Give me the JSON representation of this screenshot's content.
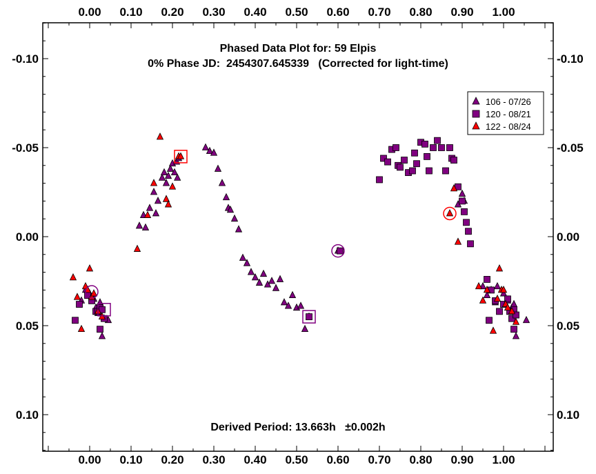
{
  "chart_data": {
    "type": "scatter",
    "title": "Phased Data Plot for: 59 Elpis",
    "subtitle": "0% Phase JD:  2454307.645339   (Corrected for light-time)",
    "annotation": "Derived Period: 13.663h   ±0.002h",
    "xlim": [
      -0.11,
      1.12
    ],
    "ylim": [
      -0.12,
      0.12
    ],
    "y_inverted": true,
    "x_ticks": [
      0.0,
      0.1,
      0.2,
      0.3,
      0.4,
      0.5,
      0.6,
      0.7,
      0.8,
      0.9,
      1.0
    ],
    "x_tick_labels": [
      "0.00",
      "0.10",
      "0.20",
      "0.30",
      "0.40",
      "0.50",
      "0.60",
      "0.70",
      "0.80",
      "0.90",
      "1.00"
    ],
    "y_ticks": [
      -0.1,
      -0.05,
      0.0,
      0.05,
      0.1
    ],
    "y_tick_labels": [
      "-0.10",
      "-0.05",
      "0.00",
      "0.05",
      "0.10"
    ],
    "grid": false,
    "legend_position": "top-right",
    "series": [
      {
        "name": "106 - 07/26",
        "marker": "triangle",
        "color": "#800080",
        "points": [
          [
            0.12,
            -0.006
          ],
          [
            0.13,
            -0.012
          ],
          [
            0.135,
            -0.005
          ],
          [
            0.145,
            -0.016
          ],
          [
            0.155,
            -0.025
          ],
          [
            0.16,
            -0.013
          ],
          [
            0.165,
            -0.02
          ],
          [
            0.175,
            -0.033
          ],
          [
            0.18,
            -0.036
          ],
          [
            0.185,
            -0.03
          ],
          [
            0.19,
            -0.034
          ],
          [
            0.195,
            -0.038
          ],
          [
            0.2,
            -0.041
          ],
          [
            0.205,
            -0.036
          ],
          [
            0.21,
            -0.042
          ],
          [
            0.212,
            -0.033
          ],
          [
            0.215,
            -0.044
          ],
          [
            0.28,
            -0.05
          ],
          [
            0.29,
            -0.048
          ],
          [
            0.3,
            -0.047
          ],
          [
            0.31,
            -0.038
          ],
          [
            0.32,
            -0.03
          ],
          [
            0.33,
            -0.022
          ],
          [
            0.335,
            -0.016
          ],
          [
            0.34,
            -0.015
          ],
          [
            0.35,
            -0.01
          ],
          [
            0.36,
            -0.004
          ],
          [
            0.37,
            0.012
          ],
          [
            0.38,
            0.015
          ],
          [
            0.39,
            0.02
          ],
          [
            0.4,
            0.023
          ],
          [
            0.41,
            0.026
          ],
          [
            0.42,
            0.021
          ],
          [
            0.43,
            0.027
          ],
          [
            0.44,
            0.025
          ],
          [
            0.45,
            0.029
          ],
          [
            0.46,
            0.024
          ],
          [
            0.47,
            0.037
          ],
          [
            0.48,
            0.039
          ],
          [
            0.49,
            0.033
          ],
          [
            0.5,
            0.04
          ],
          [
            0.51,
            0.039
          ],
          [
            0.52,
            0.052
          ],
          [
            0.53,
            0.045
          ],
          [
            0.89,
            -0.018
          ],
          [
            0.9,
            -0.024
          ],
          [
            0.905,
            -0.02
          ],
          [
            -0.02,
            0.036
          ],
          [
            -0.01,
            0.03
          ],
          [
            0.0,
            0.032
          ],
          [
            0.01,
            0.035
          ],
          [
            0.015,
            0.04
          ],
          [
            0.02,
            0.043
          ],
          [
            0.025,
            0.037
          ],
          [
            0.03,
            0.04
          ],
          [
            0.035,
            0.046
          ],
          [
            0.03,
            0.056
          ],
          [
            0.045,
            0.047
          ],
          [
            0.95,
            0.028
          ],
          [
            0.96,
            0.033
          ],
          [
            0.97,
            0.03
          ],
          [
            0.98,
            0.037
          ],
          [
            0.985,
            0.028
          ],
          [
            1.0,
            0.032
          ],
          [
            1.01,
            0.036
          ],
          [
            1.02,
            0.04
          ],
          [
            1.025,
            0.038
          ],
          [
            1.03,
            0.056
          ],
          [
            1.055,
            0.047
          ],
          [
            0.6,
            0.008
          ]
        ]
      },
      {
        "name": "120 - 08/21",
        "marker": "square",
        "color": "#800080",
        "points": [
          [
            0.7,
            -0.032
          ],
          [
            0.71,
            -0.044
          ],
          [
            0.72,
            -0.042
          ],
          [
            0.73,
            -0.049
          ],
          [
            0.74,
            -0.05
          ],
          [
            0.745,
            -0.04
          ],
          [
            0.75,
            -0.039
          ],
          [
            0.76,
            -0.043
          ],
          [
            0.77,
            -0.036
          ],
          [
            0.78,
            -0.037
          ],
          [
            0.785,
            -0.047
          ],
          [
            0.79,
            -0.041
          ],
          [
            0.8,
            -0.053
          ],
          [
            0.81,
            -0.052
          ],
          [
            0.815,
            -0.045
          ],
          [
            0.82,
            -0.037
          ],
          [
            0.83,
            -0.05
          ],
          [
            0.84,
            -0.054
          ],
          [
            0.85,
            -0.05
          ],
          [
            0.86,
            -0.037
          ],
          [
            0.87,
            -0.05
          ],
          [
            0.875,
            -0.044
          ],
          [
            0.88,
            -0.043
          ],
          [
            0.89,
            -0.028
          ],
          [
            0.9,
            -0.02
          ],
          [
            0.905,
            -0.014
          ],
          [
            0.91,
            -0.008
          ],
          [
            0.915,
            -0.003
          ],
          [
            0.92,
            0.004
          ],
          [
            -0.035,
            0.047
          ],
          [
            -0.025,
            0.038
          ],
          [
            -0.005,
            0.033
          ],
          [
            0.005,
            0.036
          ],
          [
            0.015,
            0.042
          ],
          [
            0.02,
            0.042
          ],
          [
            0.025,
            0.04
          ],
          [
            0.03,
            0.041
          ],
          [
            0.035,
            0.046
          ],
          [
            0.025,
            0.052
          ],
          [
            0.96,
            0.024
          ],
          [
            0.97,
            0.03
          ],
          [
            0.98,
            0.036
          ],
          [
            0.99,
            0.042
          ],
          [
            1.0,
            0.038
          ],
          [
            1.01,
            0.035
          ],
          [
            1.015,
            0.042
          ],
          [
            1.02,
            0.046
          ],
          [
            1.025,
            0.041
          ],
          [
            1.03,
            0.044
          ],
          [
            1.025,
            0.052
          ],
          [
            0.965,
            0.047
          ],
          [
            0.53,
            0.045
          ],
          [
            0.605,
            0.008
          ]
        ]
      },
      {
        "name": "122 - 08/24",
        "marker": "triangle",
        "color": "#ff0000",
        "points": [
          [
            -0.04,
            0.023
          ],
          [
            -0.03,
            0.034
          ],
          [
            -0.02,
            0.052
          ],
          [
            -0.01,
            0.028
          ],
          [
            -0.005,
            0.03
          ],
          [
            0.0,
            0.018
          ],
          [
            0.005,
            0.034
          ],
          [
            0.01,
            0.032
          ],
          [
            0.02,
            0.042
          ],
          [
            0.03,
            0.045
          ],
          [
            0.115,
            0.007
          ],
          [
            0.14,
            -0.012
          ],
          [
            0.155,
            -0.03
          ],
          [
            0.17,
            -0.056
          ],
          [
            0.185,
            -0.021
          ],
          [
            0.19,
            -0.018
          ],
          [
            0.2,
            -0.028
          ],
          [
            0.215,
            -0.045
          ],
          [
            0.22,
            -0.045
          ],
          [
            0.87,
            -0.013
          ],
          [
            0.88,
            -0.027
          ],
          [
            0.89,
            0.003
          ],
          [
            0.94,
            0.028
          ],
          [
            0.95,
            0.036
          ],
          [
            0.96,
            0.03
          ],
          [
            0.975,
            0.053
          ],
          [
            0.985,
            0.035
          ],
          [
            0.99,
            0.018
          ],
          [
            0.995,
            0.03
          ],
          [
            1.0,
            0.03
          ],
          [
            1.005,
            0.038
          ],
          [
            1.01,
            0.04
          ],
          [
            1.02,
            0.042
          ],
          [
            1.03,
            0.048
          ]
        ]
      }
    ],
    "highlight_markers": [
      {
        "x": 0.005,
        "y": 0.031,
        "shape": "circle",
        "color": "#800080"
      },
      {
        "x": 0.035,
        "y": 0.041,
        "shape": "square",
        "color": "#800080"
      },
      {
        "x": 0.22,
        "y": -0.045,
        "shape": "square",
        "color": "#ff0000"
      },
      {
        "x": 0.53,
        "y": 0.045,
        "shape": "square",
        "color": "#800080"
      },
      {
        "x": 0.6,
        "y": 0.008,
        "shape": "circle",
        "color": "#800080"
      },
      {
        "x": 0.87,
        "y": -0.013,
        "shape": "circle",
        "color": "#ff0000"
      }
    ]
  }
}
